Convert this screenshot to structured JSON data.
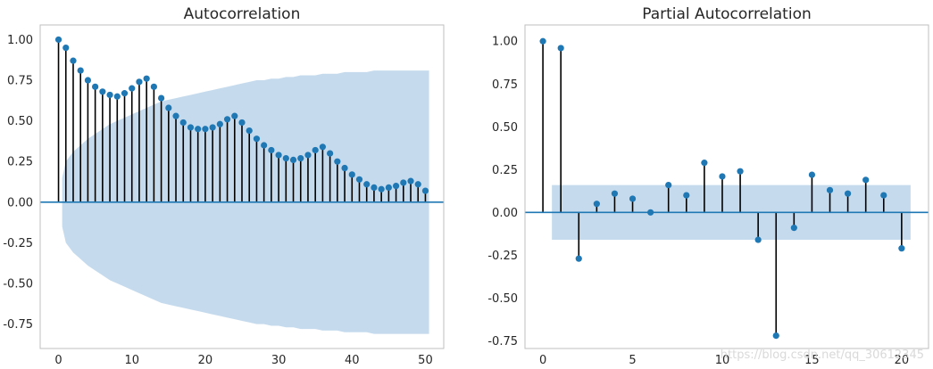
{
  "chart_data": [
    {
      "type": "stem",
      "title": "Autocorrelation",
      "xlabel": "",
      "ylabel": "",
      "xlim": [
        -2.5,
        52.5
      ],
      "ylim": [
        -0.9,
        1.09
      ],
      "xticks": [
        0,
        10,
        20,
        30,
        40,
        50
      ],
      "yticks": [
        -0.75,
        -0.5,
        -0.25,
        0.0,
        0.25,
        0.5,
        0.75,
        1.0
      ],
      "x": [
        0,
        1,
        2,
        3,
        4,
        5,
        6,
        7,
        8,
        9,
        10,
        11,
        12,
        13,
        14,
        15,
        16,
        17,
        18,
        19,
        20,
        21,
        22,
        23,
        24,
        25,
        26,
        27,
        28,
        29,
        30,
        31,
        32,
        33,
        34,
        35,
        36,
        37,
        38,
        39,
        40,
        41,
        42,
        43,
        44,
        45,
        46,
        47,
        48,
        49,
        50
      ],
      "values": [
        1.0,
        0.95,
        0.87,
        0.81,
        0.75,
        0.71,
        0.68,
        0.66,
        0.65,
        0.67,
        0.7,
        0.74,
        0.76,
        0.71,
        0.64,
        0.58,
        0.53,
        0.49,
        0.46,
        0.45,
        0.45,
        0.46,
        0.48,
        0.51,
        0.53,
        0.49,
        0.44,
        0.39,
        0.35,
        0.32,
        0.29,
        0.27,
        0.26,
        0.27,
        0.29,
        0.32,
        0.34,
        0.3,
        0.25,
        0.21,
        0.17,
        0.14,
        0.11,
        0.09,
        0.08,
        0.09,
        0.1,
        0.12,
        0.13,
        0.11,
        0.07
      ],
      "confidence_band": {
        "x": [
          0.5,
          1,
          2,
          3,
          4,
          5,
          6,
          7,
          8,
          9,
          10,
          11,
          12,
          13,
          14,
          15,
          16,
          17,
          18,
          19,
          20,
          21,
          22,
          23,
          24,
          25,
          26,
          27,
          28,
          29,
          30,
          31,
          32,
          33,
          34,
          35,
          36,
          37,
          38,
          39,
          40,
          41,
          42,
          43,
          44,
          45,
          46,
          47,
          48,
          49,
          50.5
        ],
        "upper": [
          0.15,
          0.25,
          0.31,
          0.35,
          0.39,
          0.42,
          0.45,
          0.48,
          0.5,
          0.52,
          0.54,
          0.56,
          0.58,
          0.6,
          0.62,
          0.63,
          0.64,
          0.65,
          0.66,
          0.67,
          0.68,
          0.69,
          0.7,
          0.71,
          0.72,
          0.73,
          0.74,
          0.75,
          0.75,
          0.76,
          0.76,
          0.77,
          0.77,
          0.78,
          0.78,
          0.78,
          0.79,
          0.79,
          0.79,
          0.8,
          0.8,
          0.8,
          0.8,
          0.81,
          0.81,
          0.81,
          0.81,
          0.81,
          0.81,
          0.81,
          0.81
        ],
        "lower": [
          -0.15,
          -0.25,
          -0.31,
          -0.35,
          -0.39,
          -0.42,
          -0.45,
          -0.48,
          -0.5,
          -0.52,
          -0.54,
          -0.56,
          -0.58,
          -0.6,
          -0.62,
          -0.63,
          -0.64,
          -0.65,
          -0.66,
          -0.67,
          -0.68,
          -0.69,
          -0.7,
          -0.71,
          -0.72,
          -0.73,
          -0.74,
          -0.75,
          -0.75,
          -0.76,
          -0.76,
          -0.77,
          -0.77,
          -0.78,
          -0.78,
          -0.78,
          -0.79,
          -0.79,
          -0.79,
          -0.8,
          -0.8,
          -0.8,
          -0.8,
          -0.81,
          -0.81,
          -0.81,
          -0.81,
          -0.81,
          -0.81,
          -0.81,
          -0.81
        ]
      },
      "grid": false,
      "colors": {
        "stem": "#000000",
        "marker": "#1f77b4",
        "band": "#c5dbed",
        "zero_line": "#1f77b4",
        "spine": "#bfbfbf"
      }
    },
    {
      "type": "stem",
      "title": "Partial Autocorrelation",
      "xlabel": "",
      "ylabel": "",
      "xlim": [
        -1.0,
        21.5
      ],
      "ylim": [
        -0.795,
        1.095
      ],
      "xticks": [
        0,
        5,
        10,
        15,
        20
      ],
      "yticks": [
        -0.75,
        -0.5,
        -0.25,
        0.0,
        0.25,
        0.5,
        0.75,
        1.0
      ],
      "x": [
        0,
        1,
        2,
        3,
        4,
        5,
        6,
        7,
        8,
        9,
        10,
        11,
        12,
        13,
        14,
        15,
        16,
        17,
        18,
        19,
        20
      ],
      "values": [
        1.0,
        0.96,
        -0.27,
        0.05,
        0.11,
        0.08,
        0.0,
        0.16,
        0.1,
        0.29,
        0.21,
        0.24,
        -0.16,
        -0.72,
        -0.09,
        0.22,
        0.13,
        0.11,
        0.19,
        0.1,
        -0.21
      ],
      "confidence_band": {
        "x": [
          0.5,
          20.5
        ],
        "upper": [
          0.16,
          0.16
        ],
        "lower": [
          -0.16,
          -0.16
        ]
      },
      "grid": false,
      "colors": {
        "stem": "#000000",
        "marker": "#1f77b4",
        "band": "#c5dbed",
        "zero_line": "#1f77b4",
        "spine": "#bfbfbf"
      }
    }
  ],
  "watermark": "https://blog.csdn.net/qq_30612345"
}
